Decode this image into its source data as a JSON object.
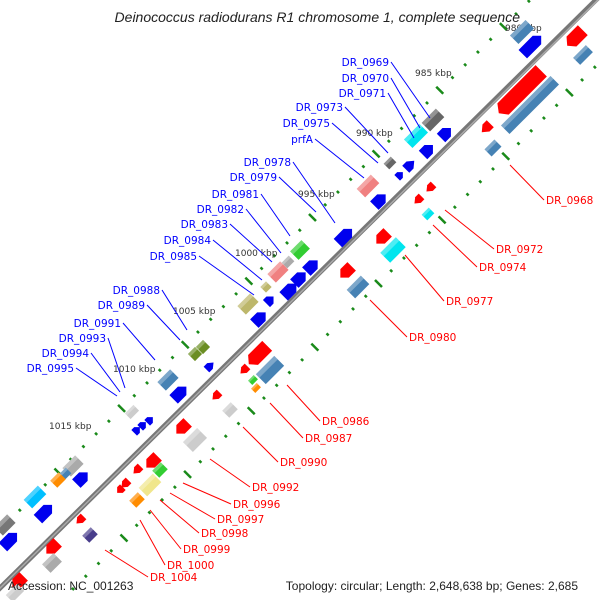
{
  "title": "Deinococcus radiodurans R1 chromosome 1, complete sequence",
  "accession": "Accession: NC_001263",
  "topology": "Topology: circular; Length: 2,648,638 bp; Genes: 2,685",
  "colors": {
    "plus_label": "#0000ff",
    "minus_label": "#ff0000",
    "backbone": "#777777",
    "tick": "#1a8a1a"
  },
  "ruler_labels": [
    "980 kbp",
    "985 kbp",
    "990 kbp",
    "995 kbp",
    "1000 kbp",
    "1005 kbp",
    "1010 kbp",
    "1015 kbp"
  ],
  "plus_labels": [
    "DR_0969",
    "DR_0970",
    "DR_0971",
    "DR_0973",
    "DR_0975",
    "prfA",
    "DR_0978",
    "DR_0979",
    "DR_0981",
    "DR_0982",
    "DR_0983",
    "DR_0984",
    "DR_0985",
    "DR_0988",
    "DR_0989",
    "DR_0991",
    "DR_0993",
    "DR_0994",
    "DR_0995"
  ],
  "minus_labels": [
    "DR_0968",
    "DR_0972",
    "DR_0974",
    "DR_0977",
    "DR_0980",
    "DR_0986",
    "DR_0987",
    "DR_0990",
    "DR_0992",
    "DR_0996",
    "DR_0997",
    "DR_0998",
    "DR_0999",
    "DR_1000",
    "DR_1004"
  ]
}
